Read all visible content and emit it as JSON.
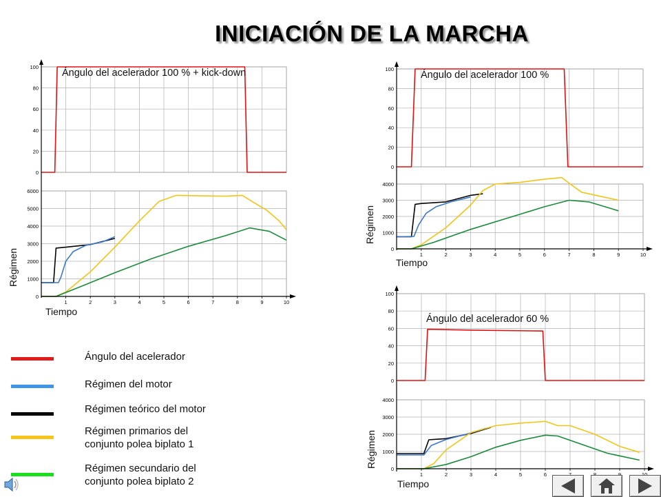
{
  "page_title": "INICIACIÓN DE LA MARCHA",
  "colors": {
    "throttle": "#e01010",
    "engine": "#3b78c8",
    "theoretical": "#000000",
    "primary": "#f0c419",
    "secondary": "#1a8a3a",
    "grid": "#b0b0b0"
  },
  "legend": [
    {
      "label": "Ángulo del acelerador",
      "color": "#e31a1a"
    },
    {
      "label": "Régimen del motor",
      "color": "#3f95e8"
    },
    {
      "label": "Régimen teórico del motor",
      "color": "#000000"
    },
    {
      "label": "Régimen primarios del\nconjunto polea biplato 1",
      "color": "#f6c518"
    },
    {
      "label": "Régimen secundario del\nconjunto polea biplato 2",
      "color": "#19e01c"
    }
  ],
  "chart_data": [
    {
      "type": "line",
      "title": "Ángulo del acelerador 100 % + kick-down",
      "xlabel": "Tiempo",
      "ylabel": "Régimen",
      "x_ticks": [
        "1",
        "2",
        "3",
        "4",
        "5",
        "6",
        "7",
        "8",
        "9",
        "10"
      ],
      "xlim": [
        0,
        10
      ],
      "grid": true,
      "throttle_panel": {
        "ylim": [
          0,
          100
        ],
        "y_ticks": [
          "0",
          "20",
          "40",
          "60",
          "80",
          "100"
        ],
        "series": [
          {
            "key": "throttle",
            "x": [
              0,
              0.55,
              0.65,
              8.3,
              8.4,
              10
            ],
            "y": [
              0,
              0,
              100,
              100,
              0,
              0
            ]
          }
        ]
      },
      "rpm_panel": {
        "ylim": [
          0,
          6000
        ],
        "y_ticks": [
          "0",
          "1000",
          "2000",
          "3000",
          "4000",
          "5000",
          "6000"
        ],
        "series": [
          {
            "key": "theoretical",
            "x": [
              0,
              0.5,
              0.6,
              1.0,
              2.0,
              3.0
            ],
            "y": [
              780,
              780,
              2750,
              2800,
              2950,
              3300
            ]
          },
          {
            "key": "engine",
            "x": [
              0,
              0.7,
              0.8,
              1.0,
              1.3,
              1.8,
              2.5,
              3.0
            ],
            "y": [
              780,
              790,
              1100,
              2000,
              2550,
              2900,
              3100,
              3400
            ]
          },
          {
            "key": "primary",
            "x": [
              0,
              0.6,
              1.0,
              2.0,
              3.0,
              4.0,
              4.8,
              5.5,
              6.5,
              7.5,
              8.2,
              8.6,
              9.2,
              9.7,
              10.0
            ],
            "y": [
              0,
              0,
              250,
              1400,
              2800,
              4300,
              5400,
              5750,
              5720,
              5700,
              5750,
              5400,
              4900,
              4300,
              3800
            ]
          },
          {
            "key": "secondary",
            "x": [
              0,
              0.6,
              1.5,
              3.0,
              4.5,
              6.0,
              7.5,
              8.5,
              9.3,
              10.0
            ],
            "y": [
              0,
              0,
              500,
              1350,
              2150,
              2850,
              3450,
              3900,
              3700,
              3200
            ]
          }
        ]
      }
    },
    {
      "type": "line",
      "title": "Ángulo del acelerador 100 %",
      "xlabel": "Tiempo",
      "ylabel": "Régimen",
      "x_ticks": [
        "1",
        "2",
        "3",
        "4",
        "5",
        "6",
        "7",
        "8",
        "9",
        "10"
      ],
      "xlim": [
        0,
        10
      ],
      "grid": true,
      "throttle_panel": {
        "ylim": [
          0,
          100
        ],
        "y_ticks": [
          "0",
          "20",
          "40",
          "60",
          "80",
          "100"
        ],
        "series": [
          {
            "key": "throttle",
            "x": [
              0,
              0.6,
              0.75,
              6.8,
              6.95,
              10
            ],
            "y": [
              0,
              0,
              100,
              100,
              0,
              0
            ]
          }
        ]
      },
      "rpm_panel": {
        "ylim": [
          0,
          4000
        ],
        "y_ticks": [
          "0",
          "1000",
          "2000",
          "3000",
          "4000"
        ],
        "series": [
          {
            "key": "theoretical",
            "x": [
              0,
              0.6,
              0.75,
              1.0,
              2.0,
              3.0,
              3.5
            ],
            "y": [
              750,
              750,
              2750,
              2800,
              2900,
              3300,
              3400
            ]
          },
          {
            "key": "engine",
            "x": [
              0,
              0.7,
              0.9,
              1.2,
              1.6,
              2.2,
              3.0
            ],
            "y": [
              750,
              760,
              1500,
              2200,
              2600,
              2900,
              3200
            ]
          },
          {
            "key": "primary",
            "x": [
              0,
              0.6,
              1.0,
              2.0,
              3.0,
              3.5,
              4.0,
              5.0,
              6.0,
              6.7,
              7.0,
              7.5,
              9.0
            ],
            "y": [
              0,
              0,
              250,
              1300,
              2700,
              3600,
              4000,
              4100,
              4300,
              4400,
              4050,
              3500,
              3000
            ]
          },
          {
            "key": "secondary",
            "x": [
              0,
              0.6,
              1.5,
              3.0,
              4.5,
              6.0,
              7.0,
              7.8,
              9.0
            ],
            "y": [
              0,
              0,
              400,
              1200,
              1900,
              2600,
              3000,
              2900,
              2350
            ]
          }
        ]
      }
    },
    {
      "type": "line",
      "title": "Ángulo del acelerador 60 %",
      "xlabel": "Tiempo",
      "ylabel": "Régimen",
      "x_ticks": [
        "1",
        "2",
        "3",
        "4",
        "5",
        "6",
        "7",
        "8",
        "9",
        "10"
      ],
      "xlim": [
        0,
        10
      ],
      "grid": true,
      "throttle_panel": {
        "ylim": [
          0,
          100
        ],
        "y_ticks": [
          "0",
          "20",
          "40",
          "60",
          "80",
          "100"
        ],
        "series": [
          {
            "key": "throttle",
            "x": [
              0,
              1.15,
              1.25,
              3.0,
              5.9,
              6.0,
              10
            ],
            "y": [
              0,
              0,
              59,
              58,
              57,
              0,
              0
            ]
          }
        ]
      },
      "rpm_panel": {
        "ylim": [
          0,
          4000
        ],
        "y_ticks": [
          "0",
          "1000",
          "2000",
          "3000",
          "4000"
        ],
        "series": [
          {
            "key": "theoretical",
            "x": [
              0,
              1.1,
              1.3,
              2.0,
              3.0,
              3.8
            ],
            "y": [
              880,
              880,
              1680,
              1750,
              2050,
              2400
            ]
          },
          {
            "key": "engine",
            "x": [
              0,
              1.1,
              1.4,
              2.0,
              2.8,
              3.6
            ],
            "y": [
              800,
              800,
              1350,
              1700,
              2000,
              2350
            ]
          },
          {
            "key": "primary",
            "x": [
              0,
              1.1,
              1.5,
              2.0,
              3.0,
              4.0,
              5.0,
              6.0,
              6.5,
              7.0,
              8.0,
              9.0,
              9.8
            ],
            "y": [
              0,
              0,
              300,
              1100,
              2100,
              2500,
              2650,
              2750,
              2500,
              2500,
              2000,
              1300,
              950
            ]
          },
          {
            "key": "secondary",
            "x": [
              0,
              1.1,
              2.0,
              3.0,
              4.0,
              5.0,
              6.0,
              6.5,
              7.5,
              8.5,
              9.8
            ],
            "y": [
              0,
              0,
              250,
              700,
              1250,
              1650,
              1950,
              1900,
              1400,
              900,
              500
            ]
          }
        ]
      }
    }
  ]
}
